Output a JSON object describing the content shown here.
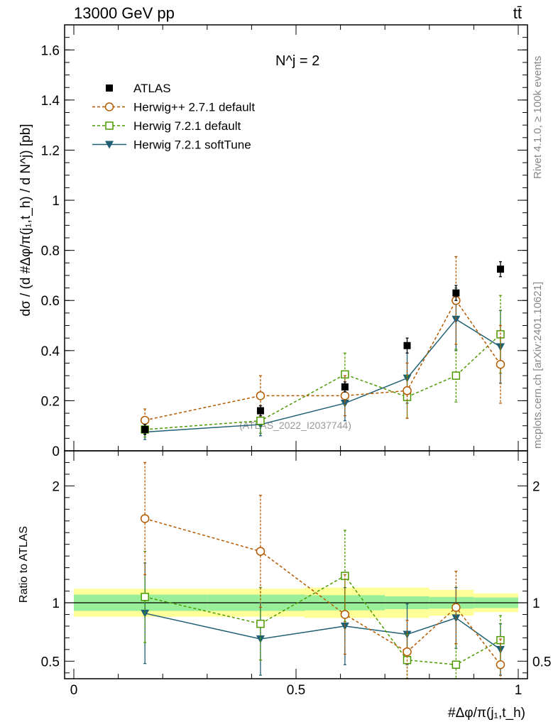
{
  "header": {
    "left_title": "13000 GeV pp",
    "right_title": "tt̄",
    "side_label_top": "Rivet 4.1.0, ≥ 100k events",
    "side_label_bottom": "mcplots.cern.ch [arXiv:2401.10621]"
  },
  "chart_data": [
    {
      "type": "scatter",
      "panel": "main",
      "annotation": "N^j = 2",
      "watermark": "(ATLAS_2022_I2037744)",
      "ylabel": "dσ / (d #Δφ/π(j₁,t_h) / d N^j) [pb]",
      "ylim": [
        0,
        1.7
      ],
      "yticks": [
        0,
        0.2,
        0.4,
        0.6,
        0.8,
        1,
        1.2,
        1.4,
        1.6
      ],
      "ytick_labels": [
        "0",
        "0.2",
        "0.4",
        "0.6",
        "0.8",
        "1",
        "1.2",
        "1.4",
        "1.6"
      ],
      "legend_position": "top-left",
      "legend": [
        "ATLAS",
        "Herwig++ 2.7.1 default",
        "Herwig 7.2.1 default",
        "Herwig 7.2.1 softTune"
      ],
      "x": [
        0.16,
        0.42,
        0.61,
        0.75,
        0.86,
        0.96
      ],
      "series": [
        {
          "name": "ATLAS",
          "style": "data",
          "color": "#000000",
          "values": [
            0.085,
            0.16,
            0.255,
            0.42,
            0.63,
            0.725
          ],
          "errors": [
            0.02,
            0.02,
            0.02,
            0.03,
            0.03,
            0.03
          ]
        },
        {
          "name": "Herwig++ 2.7.1 default",
          "style": "circle",
          "color": "#b35900",
          "values": [
            0.122,
            0.22,
            0.22,
            0.24,
            0.6,
            0.345
          ],
          "errors": [
            0.045,
            0.08,
            0.08,
            0.11,
            0.175,
            0.155
          ]
        },
        {
          "name": "Herwig 7.2.1 default",
          "style": "square",
          "color": "#4c9a00",
          "values": [
            0.085,
            0.12,
            0.305,
            0.215,
            0.3,
            0.465
          ],
          "errors": [
            0.03,
            0.05,
            0.085,
            0.085,
            0.105,
            0.155
          ]
        },
        {
          "name": "Herwig 7.2.1 softTune",
          "style": "triangle",
          "color": "#1f5f73",
          "values": [
            0.075,
            0.105,
            0.19,
            0.29,
            0.525,
            0.415
          ],
          "errors": [
            0.03,
            0.045,
            0.07,
            0.1,
            0.125,
            0.145
          ]
        }
      ]
    },
    {
      "type": "scatter",
      "panel": "ratio",
      "ylabel": "Ratio to ATLAS",
      "xlabel": "#Δφ/π(j₁,t_h)",
      "xlim": [
        0,
        1
      ],
      "xticks": [
        0,
        0.5,
        1
      ],
      "xtick_labels": [
        "0",
        "0.5",
        "1"
      ],
      "ylim": [
        0.35,
        2.3
      ],
      "yticks": [
        0.5,
        1,
        2
      ],
      "ytick_labels": [
        "0.5",
        "1",
        "2"
      ],
      "bands": {
        "bins": [
          0,
          0.3,
          0.52,
          0.7,
          0.8,
          0.9,
          1.0
        ],
        "green": [
          0.07,
          0.07,
          0.065,
          0.055,
          0.05,
          0.045
        ],
        "yellow": [
          0.12,
          0.12,
          0.13,
          0.13,
          0.11,
          0.08
        ]
      },
      "x": [
        0.16,
        0.42,
        0.61,
        0.75,
        0.86,
        0.96
      ],
      "series": [
        {
          "name": "Herwig++ 2.7.1 default",
          "style": "circle",
          "color": "#b35900",
          "values": [
            1.72,
            1.44,
            0.9,
            0.58,
            0.96,
            0.47
          ],
          "errors": [
            0.48,
            0.48,
            0.34,
            0.27,
            0.31,
            0.22
          ]
        },
        {
          "name": "Herwig 7.2.1 default",
          "style": "square",
          "color": "#4c9a00",
          "values": [
            1.05,
            0.82,
            1.23,
            0.51,
            0.47,
            0.68
          ],
          "errors": [
            0.39,
            0.31,
            0.39,
            0.22,
            0.18,
            0.21
          ]
        },
        {
          "name": "Herwig 7.2.1 softTune",
          "style": "triangle",
          "color": "#1f5f73",
          "values": [
            0.91,
            0.69,
            0.8,
            0.73,
            0.87,
            0.6
          ],
          "errors": [
            0.43,
            0.31,
            0.33,
            0.26,
            0.26,
            0.22
          ]
        }
      ]
    }
  ]
}
